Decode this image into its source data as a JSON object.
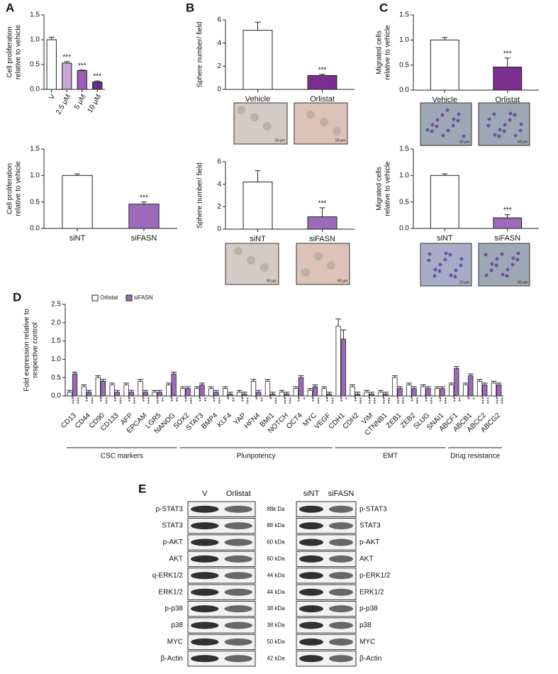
{
  "panels": [
    "A",
    "B",
    "C",
    "D",
    "E"
  ],
  "chart_data": [
    {
      "type": "bar",
      "ylabel": [
        "Cell proliferation",
        "relative to vehicle"
      ],
      "categories": [
        "V",
        "2.5 μM",
        "5 μM",
        "10 μM"
      ],
      "values": [
        1.0,
        0.53,
        0.38,
        0.15
      ],
      "errors": [
        0.05,
        0.03,
        0.01,
        0.02
      ],
      "colors": [
        "#ffffff",
        "#c9a6d6",
        "#9c5fb5",
        "#6e2c8a"
      ],
      "annotations": [
        null,
        "***",
        "***",
        "***"
      ],
      "ylim": [
        0,
        1.5
      ],
      "yticks": [
        {
          "value": 0,
          "label": "0.0"
        },
        0.5,
        {
          "value": 1,
          "label": "1.0"
        },
        1.5
      ],
      "rotate_labels": true
    },
    {
      "type": "bar",
      "ylabel": [
        "Cell proliferation",
        "relative to vehicle"
      ],
      "categories": [
        "siNT",
        "siFASN"
      ],
      "values": [
        1.0,
        0.46
      ],
      "errors": [
        0.03,
        0.04
      ],
      "colors": [
        "#ffffff",
        "#9c6ab8"
      ],
      "annotations": [
        null,
        "***"
      ],
      "ylim": [
        0,
        1.5
      ],
      "yticks": [
        {
          "value": 0,
          "label": "0.0"
        },
        0.5,
        {
          "value": 1,
          "label": "1.0"
        },
        1.5
      ],
      "rotate_labels": false
    },
    {
      "type": "bar",
      "ylabel": [
        "Sphere number/ field"
      ],
      "categories": [
        "Vehicle",
        "Orlistat"
      ],
      "values": [
        5.1,
        1.2
      ],
      "errors": [
        0.7,
        0.1
      ],
      "colors": [
        "#ffffff",
        "#7b2e8e"
      ],
      "annotations": [
        null,
        "***"
      ],
      "ylim": [
        0,
        6
      ],
      "yticks": [
        0,
        2,
        4,
        6
      ],
      "rotate_labels": false
    },
    {
      "type": "bar",
      "ylabel": [
        "Sphere number/ field"
      ],
      "categories": [
        "siNT",
        "siFASN"
      ],
      "values": [
        4.2,
        1.1
      ],
      "errors": [
        1.0,
        0.8
      ],
      "colors": [
        "#ffffff",
        "#9c6ab8"
      ],
      "annotations": [
        null,
        "***"
      ],
      "ylim": [
        0,
        6
      ],
      "yticks": [
        0,
        2,
        4,
        6
      ],
      "rotate_labels": false
    },
    {
      "type": "bar",
      "ylabel": [
        "Migrated cells",
        "relative to vehicle"
      ],
      "categories": [
        "Vehicle",
        "Orlistat"
      ],
      "values": [
        1.0,
        0.46
      ],
      "errors": [
        0.05,
        0.18
      ],
      "colors": [
        "#ffffff",
        "#7b2e8e"
      ],
      "annotations": [
        null,
        "***"
      ],
      "ylim": [
        0,
        1.5
      ],
      "yticks": [
        {
          "value": 0,
          "label": "0.0"
        },
        0.5,
        {
          "value": 1,
          "label": "1.0"
        },
        1.5
      ],
      "rotate_labels": false
    },
    {
      "type": "bar",
      "ylabel": [
        "Migrated cells",
        "relative to vehicle"
      ],
      "categories": [
        "siNT",
        "siFASN"
      ],
      "values": [
        1.0,
        0.2
      ],
      "errors": [
        0.03,
        0.06
      ],
      "colors": [
        "#ffffff",
        "#9c6ab8"
      ],
      "annotations": [
        null,
        "***"
      ],
      "ylim": [
        0,
        1.5
      ],
      "yticks": [
        {
          "value": 0,
          "label": "0.0"
        },
        0.5,
        {
          "value": 1,
          "label": "1.0"
        },
        1.5
      ],
      "rotate_labels": false
    },
    {
      "type": "grouped_bar",
      "ylabel": [
        "Fold expression relative to",
        "respective control"
      ],
      "legend": "top-left",
      "categories": [
        "CD13",
        "CD44",
        "CD90",
        "CD133",
        "AFP",
        "EPCAM",
        "LGR5",
        "NANOG",
        "SOX2",
        "STAT3",
        "BMP4",
        "KLF4",
        "YAP",
        "HFN4",
        "BMI1",
        "NOTCH",
        "OCT4",
        "MYC",
        "VEGF",
        "CDH1",
        "CDH2",
        "VIM",
        "CTNNB1",
        "ZEB1",
        "ZEB2",
        "SLUG",
        "SNAI1",
        "ABCF1",
        "ABCB1",
        "ABCC2",
        "ABCG2"
      ],
      "groups": [
        {
          "label": "CSC markers",
          "size": 8
        },
        {
          "label": "Pluripotency",
          "size": 11
        },
        {
          "label": "EMT",
          "size": 8
        },
        {
          "label": "Drug resistance",
          "size": 4
        }
      ],
      "series": [
        {
          "name": "Orlistat",
          "color": "#ffffff",
          "values": [
            0.1,
            0.25,
            0.5,
            0.3,
            0.3,
            0.4,
            0.1,
            0.3,
            0.2,
            0.2,
            0.2,
            0.2,
            0.1,
            0.4,
            0.4,
            0.1,
            0.2,
            0.15,
            0.2,
            1.9,
            0.25,
            0.1,
            0.1,
            0.5,
            0.3,
            0.25,
            0.2,
            0.3,
            0.3,
            0.4,
            0.35
          ],
          "errors": [
            0.05,
            0.05,
            0.05,
            0.05,
            0.05,
            0.05,
            0.05,
            0.05,
            0.05,
            0.05,
            0.05,
            0.05,
            0.05,
            0.05,
            0.05,
            0.05,
            0.05,
            0.05,
            0.05,
            0.2,
            0.05,
            0.05,
            0.05,
            0.05,
            0.05,
            0.05,
            0.05,
            0.05,
            0.05,
            0.05,
            0.05
          ],
          "annotations": [
            "***",
            "**",
            "**",
            "**",
            "**",
            "**",
            "***",
            "**",
            "**",
            "**",
            "**",
            "*",
            "**",
            "*",
            "*",
            "***",
            "**",
            "**",
            "**",
            "**",
            "**",
            "***",
            "***",
            "***",
            "**",
            "**",
            "**",
            "**",
            "*",
            "***",
            "***"
          ]
        },
        {
          "name": "siFASN",
          "color": "#9c6ab8",
          "values": [
            0.6,
            0.1,
            0.4,
            0.1,
            0.1,
            0.1,
            0.1,
            0.6,
            0.2,
            0.3,
            0.1,
            0.05,
            0.05,
            0.1,
            0.05,
            0.05,
            0.5,
            0.25,
            0.05,
            1.55,
            0.05,
            0.05,
            0.05,
            0.2,
            0.2,
            0.2,
            0.2,
            0.75,
            0.55,
            0.3,
            0.3
          ],
          "errors": [
            0.05,
            0.05,
            0.05,
            0.05,
            0.05,
            0.05,
            0.05,
            0.05,
            0.05,
            0.05,
            0.05,
            0.05,
            0.05,
            0.05,
            0.05,
            0.05,
            0.05,
            0.05,
            0.05,
            0.25,
            0.05,
            0.05,
            0.05,
            0.05,
            0.05,
            0.05,
            0.05,
            0.05,
            0.05,
            0.05,
            0.05
          ],
          "annotations": [
            "***",
            "***",
            "***",
            "***",
            "***",
            "***",
            "**",
            "**",
            "***",
            "**",
            "***",
            "**",
            "***",
            "**",
            "***",
            "***",
            "*",
            "***",
            "***",
            "*",
            "***",
            "***",
            "***",
            "***",
            "***",
            "***",
            "***",
            "**",
            "*",
            "***",
            "***"
          ]
        }
      ],
      "ylim": [
        0,
        2.5
      ],
      "yticks": [
        {
          "value": 0,
          "label": "0.0"
        },
        0.5,
        {
          "value": 1,
          "label": "1.0"
        },
        1.5,
        {
          "value": 2,
          "label": "2.0"
        },
        2.5
      ]
    }
  ],
  "micrographs": [
    {
      "scale": "50 μm"
    },
    {
      "scale": "50 μm"
    },
    {
      "scale": "50 μm"
    },
    {
      "scale": "50 μm"
    },
    {
      "scale": "50 μm"
    },
    {
      "scale": "50 μm"
    },
    {
      "scale": "10 μm"
    },
    {
      "scale": "50 μm"
    }
  ],
  "blots": {
    "left_columns": [
      "V",
      "Orlistat"
    ],
    "left_rows": [
      "p-STAT3",
      "STAT3",
      "p-AKT",
      "AKT",
      "q-ERK1/2",
      "ERK1/2",
      "p-p38",
      "p38",
      "MYC",
      "β-Actin"
    ],
    "kda": [
      "88k Da",
      "88 kDa",
      "60 kDa",
      "60 kDa",
      "44 kDa",
      "44 kDa",
      "38 kDa",
      "38 kDa",
      "50 kDa",
      "42 kDa"
    ],
    "right_columns": [
      "siNT",
      "siFASN"
    ],
    "right_rows": [
      "p-STAT3",
      "STAT3",
      "p-AKT",
      "AKT",
      "p-ERK1/2",
      "ERK1/2",
      "p-p38",
      "p38",
      "MYC",
      "β-Actin"
    ]
  }
}
